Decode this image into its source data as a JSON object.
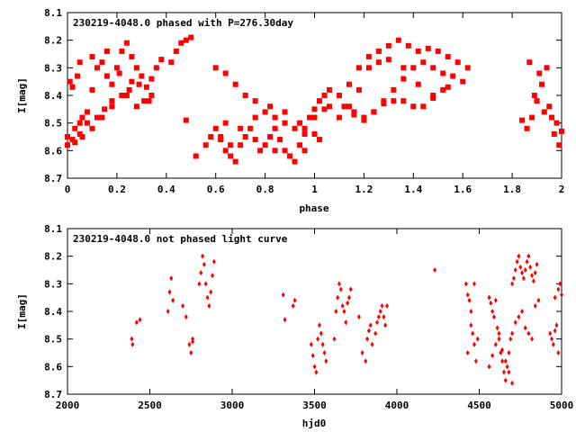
{
  "chart_data": [
    {
      "type": "scatter",
      "title": "230219-4048.0 phased with P=276.30day",
      "xlabel": "phase",
      "ylabel": "I[mag]",
      "xlim": [
        0,
        2
      ],
      "ylim": [
        8.1,
        8.7
      ],
      "y_inverted": true,
      "grid": false,
      "xticks": [
        "0",
        "0.2",
        "0.4",
        "0.6",
        "0.8",
        "1",
        "1.2",
        "1.4",
        "1.6",
        "1.8",
        "2"
      ],
      "yticks": [
        "8.1",
        "8.2",
        "8.3",
        "8.4",
        "8.5",
        "8.6",
        "8.7"
      ],
      "marker_color": "#ff0000",
      "series": [
        {
          "x": [
            0.0,
            0.01,
            0.02,
            0.03,
            0.04,
            0.05,
            0.06,
            0.08,
            0.1,
            0.12,
            0.14,
            0.16,
            0.18,
            0.2,
            0.22,
            0.24,
            0.26,
            0.28,
            0.3,
            0.32,
            0.34,
            0.36,
            0.38,
            0.42,
            0.44,
            0.46,
            0.48,
            0.5,
            0.02,
            0.05,
            0.08,
            0.12,
            0.15,
            0.18,
            0.22,
            0.25,
            0.28,
            0.31,
            0.34,
            0.0,
            0.03,
            0.06,
            0.1,
            0.14,
            0.18,
            0.24,
            0.29,
            0.33,
            0.05,
            0.1,
            0.16,
            0.21,
            0.26,
            0.48,
            0.52,
            0.56,
            0.58,
            0.6,
            0.62,
            0.64,
            0.66,
            0.68,
            0.7,
            0.72,
            0.74,
            0.76,
            0.78,
            0.8,
            0.82,
            0.84,
            0.86,
            0.88,
            0.9,
            0.92,
            0.94,
            0.96,
            0.98,
            1.0,
            1.02,
            1.04,
            1.06,
            0.6,
            0.64,
            0.68,
            0.72,
            0.76,
            0.8,
            0.84,
            0.88,
            0.92,
            0.96,
            1.0,
            1.04,
            0.64,
            0.7,
            0.76,
            0.82,
            0.88,
            0.94,
            1.0,
            0.62,
            0.66,
            0.84,
            0.9,
            0.96,
            1.02,
            1.06,
            1.1,
            1.14,
            1.18,
            1.22,
            1.26,
            1.3,
            1.34,
            1.38,
            1.42,
            1.46,
            1.5,
            1.54,
            1.58,
            1.62,
            1.12,
            1.16,
            1.2,
            1.24,
            1.28,
            1.32,
            1.36,
            1.4,
            1.44,
            1.48,
            1.52,
            1.56,
            1.6,
            1.1,
            1.14,
            1.18,
            1.22,
            1.26,
            1.3,
            1.36,
            1.42,
            1.48,
            1.54,
            1.16,
            1.2,
            1.24,
            1.28,
            1.32,
            1.36,
            1.4,
            1.44,
            1.48,
            1.52,
            1.84,
            1.86,
            1.88,
            1.9,
            1.92,
            1.94,
            1.96,
            1.98,
            2.0,
            1.87,
            1.91,
            1.95,
            1.99,
            1.89,
            1.93,
            1.97
          ],
          "y": [
            8.55,
            8.35,
            8.37,
            8.52,
            8.33,
            8.5,
            8.48,
            8.46,
            8.38,
            8.3,
            8.28,
            8.33,
            8.36,
            8.3,
            8.24,
            8.21,
            8.26,
            8.3,
            8.33,
            8.37,
            8.34,
            8.3,
            8.27,
            8.28,
            8.24,
            8.21,
            8.2,
            8.19,
            8.56,
            8.54,
            8.5,
            8.48,
            8.45,
            8.42,
            8.4,
            8.38,
            8.44,
            8.42,
            8.4,
            8.58,
            8.57,
            8.55,
            8.52,
            8.48,
            8.44,
            8.4,
            8.36,
            8.42,
            8.28,
            8.26,
            8.24,
            8.32,
            8.35,
            8.49,
            8.62,
            8.58,
            8.55,
            8.52,
            8.56,
            8.6,
            8.62,
            8.64,
            8.58,
            8.55,
            8.52,
            8.56,
            8.6,
            8.58,
            8.55,
            8.52,
            8.56,
            8.6,
            8.62,
            8.64,
            8.58,
            8.52,
            8.48,
            8.45,
            8.42,
            8.4,
            8.38,
            8.3,
            8.32,
            8.36,
            8.4,
            8.42,
            8.46,
            8.48,
            8.5,
            8.52,
            8.54,
            8.48,
            8.45,
            8.5,
            8.52,
            8.48,
            8.44,
            8.46,
            8.5,
            8.54,
            8.55,
            8.58,
            8.6,
            8.62,
            8.6,
            8.56,
            8.44,
            8.4,
            8.36,
            8.3,
            8.26,
            8.24,
            8.22,
            8.2,
            8.22,
            8.24,
            8.23,
            8.24,
            8.26,
            8.28,
            8.3,
            8.44,
            8.46,
            8.48,
            8.46,
            8.42,
            8.38,
            8.34,
            8.3,
            8.28,
            8.3,
            8.32,
            8.33,
            8.35,
            8.48,
            8.44,
            8.38,
            8.3,
            8.28,
            8.27,
            8.3,
            8.36,
            8.4,
            8.37,
            8.47,
            8.49,
            8.46,
            8.43,
            8.42,
            8.42,
            8.44,
            8.44,
            8.41,
            8.38,
            8.49,
            8.52,
            8.48,
            8.42,
            8.36,
            8.3,
            8.48,
            8.5,
            8.53,
            8.28,
            8.32,
            8.44,
            8.58,
            8.4,
            8.46,
            8.54
          ]
        }
      ]
    },
    {
      "type": "scatter",
      "title": "230219-4048.0 not phased light curve",
      "xlabel": "hjd0",
      "ylabel": "I[mag]",
      "xlim": [
        2000,
        5000
      ],
      "ylim": [
        8.1,
        8.7
      ],
      "y_inverted": true,
      "grid": false,
      "xticks": [
        "2000",
        "2500",
        "3000",
        "3500",
        "4000",
        "4500",
        "5000"
      ],
      "yticks": [
        "8.1",
        "8.2",
        "8.3",
        "8.4",
        "8.5",
        "8.6",
        "8.7"
      ],
      "marker_color": "#ff0000",
      "series": [
        {
          "x": [
            2390,
            2395,
            2420,
            2440,
            2610,
            2620,
            2630,
            2640,
            2700,
            2720,
            2740,
            2750,
            2760,
            2760,
            2800,
            2810,
            2820,
            2830,
            2840,
            2850,
            2860,
            2870,
            2880,
            2890,
            3310,
            3320,
            3370,
            3380,
            3480,
            3490,
            3500,
            3510,
            3520,
            3530,
            3540,
            3550,
            3560,
            3570,
            3620,
            3630,
            3640,
            3650,
            3660,
            3670,
            3680,
            3690,
            3700,
            3710,
            3720,
            3770,
            3790,
            3810,
            3820,
            3830,
            3840,
            3850,
            3870,
            3880,
            3890,
            3900,
            3910,
            3920,
            3930,
            3940,
            4230,
            4420,
            4430,
            4440,
            4450,
            4460,
            4470,
            4480,
            4490,
            4430,
            4450,
            4470,
            4560,
            4570,
            4580,
            4590,
            4600,
            4610,
            4620,
            4630,
            4640,
            4650,
            4660,
            4670,
            4680,
            4690,
            4700,
            4560,
            4580,
            4600,
            4620,
            4640,
            4660,
            4680,
            4700,
            4700,
            4710,
            4720,
            4730,
            4740,
            4750,
            4760,
            4770,
            4780,
            4790,
            4800,
            4810,
            4820,
            4830,
            4840,
            4850,
            4720,
            4740,
            4760,
            4780,
            4800,
            4820,
            4840,
            4860,
            4930,
            4940,
            4950,
            4960,
            4970,
            4980,
            4990,
            5000,
            4960,
            4980
          ],
          "y": [
            8.5,
            8.52,
            8.44,
            8.43,
            8.4,
            8.33,
            8.28,
            8.36,
            8.38,
            8.42,
            8.52,
            8.55,
            8.51,
            8.5,
            8.3,
            8.26,
            8.2,
            8.23,
            8.3,
            8.35,
            8.38,
            8.33,
            8.27,
            8.22,
            8.34,
            8.43,
            8.38,
            8.36,
            8.52,
            8.56,
            8.6,
            8.62,
            8.5,
            8.45,
            8.48,
            8.52,
            8.55,
            8.58,
            8.5,
            8.4,
            8.35,
            8.3,
            8.32,
            8.38,
            8.4,
            8.44,
            8.37,
            8.35,
            8.32,
            8.42,
            8.55,
            8.58,
            8.5,
            8.47,
            8.45,
            8.52,
            8.48,
            8.44,
            8.42,
            8.4,
            8.38,
            8.42,
            8.45,
            8.38,
            8.25,
            8.3,
            8.34,
            8.36,
            8.4,
            8.48,
            8.52,
            8.58,
            8.5,
            8.55,
            8.45,
            8.3,
            8.35,
            8.37,
            8.4,
            8.42,
            8.36,
            8.46,
            8.5,
            8.55,
            8.58,
            8.62,
            8.65,
            8.6,
            8.55,
            8.5,
            8.48,
            8.6,
            8.56,
            8.52,
            8.48,
            8.54,
            8.58,
            8.62,
            8.66,
            8.3,
            8.28,
            8.25,
            8.22,
            8.2,
            8.24,
            8.26,
            8.28,
            8.25,
            8.22,
            8.2,
            8.24,
            8.27,
            8.29,
            8.26,
            8.23,
            8.44,
            8.42,
            8.4,
            8.46,
            8.48,
            8.5,
            8.38,
            8.36,
            8.48,
            8.5,
            8.52,
            8.47,
            8.45,
            8.55,
            8.3,
            8.34,
            8.35,
            8.32
          ]
        }
      ]
    }
  ]
}
